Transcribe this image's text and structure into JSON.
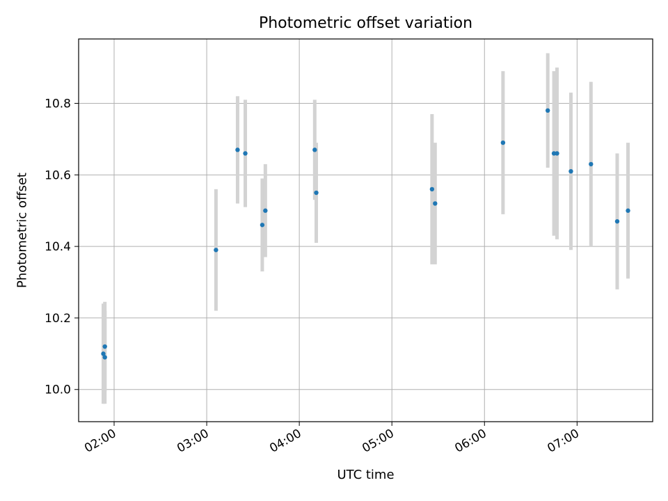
{
  "chart_data": {
    "type": "scatter",
    "title": "Photometric offset variation",
    "xlabel": "UTC time",
    "ylabel": "Photometric offset",
    "xlim": [
      "01:37",
      "07:49"
    ],
    "ylim": [
      9.91,
      10.98
    ],
    "x_ticks": [
      "02:00",
      "03:00",
      "04:00",
      "05:00",
      "06:00",
      "07:00"
    ],
    "y_ticks": [
      10.0,
      10.2,
      10.4,
      10.6,
      10.8
    ],
    "grid": true,
    "legend": "none",
    "point_color": "#1f77b4",
    "errorbar_color": "#d3d3d3",
    "points": [
      {
        "time": "01:53",
        "y": 10.1,
        "yerr": 0.14
      },
      {
        "time": "01:54",
        "y": 10.12,
        "yerr": 0.125
      },
      {
        "time": "01:54",
        "y": 10.09,
        "yerr": 0.13
      },
      {
        "time": "03:06",
        "y": 10.39,
        "yerr": 0.17
      },
      {
        "time": "03:20",
        "y": 10.67,
        "yerr": 0.15
      },
      {
        "time": "03:25",
        "y": 10.66,
        "yerr": 0.15
      },
      {
        "time": "03:36",
        "y": 10.46,
        "yerr": 0.13
      },
      {
        "time": "03:38",
        "y": 10.5,
        "yerr": 0.13
      },
      {
        "time": "04:10",
        "y": 10.67,
        "yerr": 0.14
      },
      {
        "time": "04:11",
        "y": 10.55,
        "yerr": 0.14
      },
      {
        "time": "05:26",
        "y": 10.56,
        "yerr": 0.21
      },
      {
        "time": "05:28",
        "y": 10.52,
        "yerr": 0.17
      },
      {
        "time": "06:12",
        "y": 10.69,
        "yerr": 0.2
      },
      {
        "time": "06:41",
        "y": 10.78,
        "yerr": 0.16
      },
      {
        "time": "06:45",
        "y": 10.66,
        "yerr": 0.23
      },
      {
        "time": "06:47",
        "y": 10.66,
        "yerr": 0.24
      },
      {
        "time": "06:56",
        "y": 10.61,
        "yerr": 0.22
      },
      {
        "time": "07:09",
        "y": 10.63,
        "yerr": 0.23
      },
      {
        "time": "07:26",
        "y": 10.47,
        "yerr": 0.19
      },
      {
        "time": "07:33",
        "y": 10.5,
        "yerr": 0.19
      }
    ]
  }
}
